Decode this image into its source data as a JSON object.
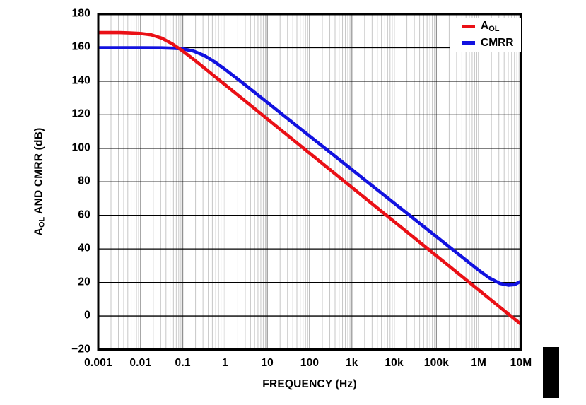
{
  "chart_data": {
    "type": "line",
    "title": "",
    "xlabel": "FREQUENCY (Hz)",
    "ylabel": "AOL AND CMRR (dB)",
    "ylabel_parts": {
      "main": "A",
      "sub": "OL",
      "rest": " AND CMRR (dB)"
    },
    "x_scale": "log",
    "xlim": [
      0.001,
      10000000
    ],
    "ylim": [
      -20,
      180
    ],
    "x_tick_labels": [
      "0.001",
      "0.01",
      "0.1",
      "1",
      "10",
      "100",
      "1k",
      "10k",
      "100k",
      "1M",
      "10M"
    ],
    "x_tick_values": [
      0.001,
      0.01,
      0.1,
      1,
      10,
      100,
      1000,
      10000,
      100000,
      1000000,
      10000000
    ],
    "y_tick_labels": [
      "180",
      "160",
      "140",
      "120",
      "100",
      "80",
      "60",
      "40",
      "20",
      "0",
      "−20"
    ],
    "y_tick_values": [
      180,
      160,
      140,
      120,
      100,
      80,
      60,
      40,
      20,
      0,
      -20
    ],
    "grid": {
      "horizontal_color": "#000000",
      "vertical_major_color": "#919191",
      "vertical_minor_color": "#c7c7c7",
      "frame_color": "#000000"
    },
    "legend_position": "top-right-inside",
    "legend": [
      {
        "label_main": "A",
        "label_sub": "OL",
        "color": "#ea1016"
      },
      {
        "label_main": "CMRR",
        "label_sub": "",
        "color": "#1212e0"
      }
    ],
    "series": [
      {
        "name": "AOL",
        "color": "#ea1016",
        "flat_level_db": 169,
        "corner_hz": 0.03,
        "slope_db_per_decade": -20,
        "end_value_db_at_10MHz": -5,
        "points_logf_db": [
          [
            -3,
            169
          ],
          [
            -2.5,
            169
          ],
          [
            -2.25,
            168.8
          ],
          [
            -2,
            168.5
          ],
          [
            -1.75,
            167.7
          ],
          [
            -1.5,
            165.7
          ],
          [
            -1.25,
            162.3
          ],
          [
            -1,
            158
          ],
          [
            -0.75,
            153.1
          ],
          [
            -0.5,
            148.1
          ],
          [
            -0.25,
            143
          ],
          [
            0,
            137.9
          ],
          [
            0.5,
            127.7
          ],
          [
            1,
            117.5
          ],
          [
            1.5,
            107.3
          ],
          [
            2,
            97.1
          ],
          [
            2.5,
            86.9
          ],
          [
            3,
            76.7
          ],
          [
            3.5,
            66.5
          ],
          [
            4,
            56.3
          ],
          [
            4.5,
            46.1
          ],
          [
            5,
            35.9
          ],
          [
            5.5,
            25.7
          ],
          [
            6,
            15.5
          ],
          [
            6.5,
            5.3
          ],
          [
            7,
            -4.9
          ]
        ]
      },
      {
        "name": "CMRR",
        "color": "#1212e0",
        "flat_level_db": 160,
        "corner_hz": 0.23,
        "slope_db_per_decade": -20,
        "end_value_db_at_10MHz": 20.7,
        "points_logf_db": [
          [
            -3,
            160
          ],
          [
            -2,
            160
          ],
          [
            -1.5,
            159.9
          ],
          [
            -1.25,
            159.7
          ],
          [
            -1,
            159.3
          ],
          [
            -0.75,
            158
          ],
          [
            -0.5,
            155.4
          ],
          [
            -0.25,
            151.6
          ],
          [
            0,
            147.1
          ],
          [
            0.25,
            142.2
          ],
          [
            0.5,
            137.3
          ],
          [
            1,
            127.3
          ],
          [
            1.5,
            117.3
          ],
          [
            2,
            107.3
          ],
          [
            2.5,
            97.3
          ],
          [
            3,
            87.3
          ],
          [
            3.5,
            77.3
          ],
          [
            4,
            67.3
          ],
          [
            4.5,
            57.3
          ],
          [
            5,
            47.3
          ],
          [
            5.5,
            37.3
          ],
          [
            6,
            27.3
          ],
          [
            6.25,
            22.7
          ],
          [
            6.5,
            19.4
          ],
          [
            6.7,
            18.4
          ],
          [
            6.85,
            18.7
          ],
          [
            7,
            20.7
          ]
        ]
      }
    ]
  },
  "decor": {
    "page_marker_color": "#000000"
  }
}
